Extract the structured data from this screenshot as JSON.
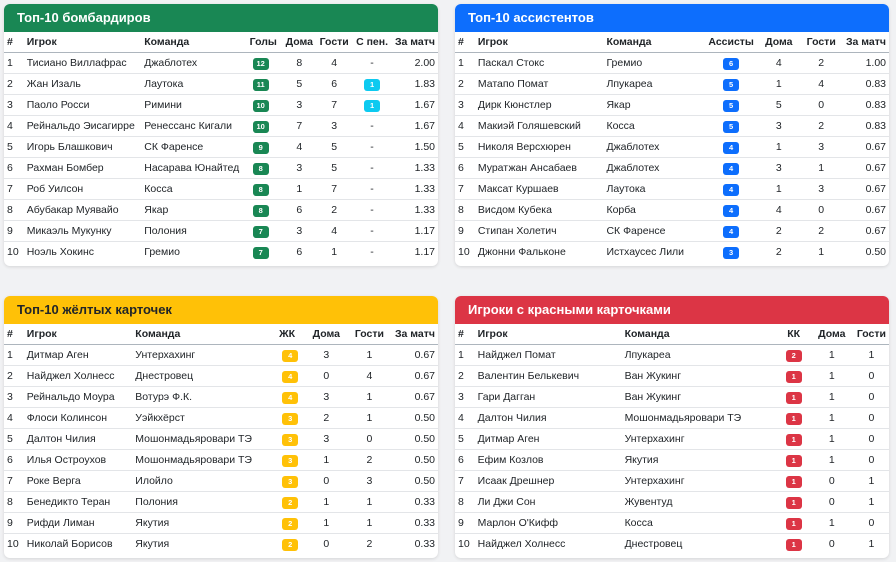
{
  "scorers": {
    "title": "Топ-10 бомбардиров",
    "headers": [
      "#",
      "Игрок",
      "Команда",
      "Голы",
      "Дома",
      "Гости",
      "С пен.",
      "За матч"
    ],
    "rows": [
      {
        "n": "1",
        "player": "Тисиано Виллафрас",
        "team": "Джаблотех",
        "goals": "12",
        "home": "8",
        "away": "4",
        "pen": "-",
        "per": "2.00"
      },
      {
        "n": "2",
        "player": "Жан Изаль",
        "team": "Лаутока",
        "goals": "11",
        "home": "5",
        "away": "6",
        "pen": "1",
        "per": "1.83"
      },
      {
        "n": "3",
        "player": "Паоло Росси",
        "team": "Римини",
        "goals": "10",
        "home": "3",
        "away": "7",
        "pen": "1",
        "per": "1.67"
      },
      {
        "n": "4",
        "player": "Рейнальдо Эисагирре",
        "team": "Ренессанс Кигали",
        "goals": "10",
        "home": "7",
        "away": "3",
        "pen": "-",
        "per": "1.67"
      },
      {
        "n": "5",
        "player": "Игорь Блашкович",
        "team": "СК Фаренсе",
        "goals": "9",
        "home": "4",
        "away": "5",
        "pen": "-",
        "per": "1.50"
      },
      {
        "n": "6",
        "player": "Рахман Бомбер",
        "team": "Насарава Юнайтед",
        "goals": "8",
        "home": "3",
        "away": "5",
        "pen": "-",
        "per": "1.33"
      },
      {
        "n": "7",
        "player": "Роб Уилсон",
        "team": "Косса",
        "goals": "8",
        "home": "1",
        "away": "7",
        "pen": "-",
        "per": "1.33"
      },
      {
        "n": "8",
        "player": "Абубакар Муявайо",
        "team": "Якар",
        "goals": "8",
        "home": "6",
        "away": "2",
        "pen": "-",
        "per": "1.33"
      },
      {
        "n": "9",
        "player": "Микаэль Мукунку",
        "team": "Полония",
        "goals": "7",
        "home": "3",
        "away": "4",
        "pen": "-",
        "per": "1.17"
      },
      {
        "n": "10",
        "player": "Ноэль Хокинс",
        "team": "Гремио",
        "goals": "7",
        "home": "6",
        "away": "1",
        "pen": "-",
        "per": "1.17"
      }
    ]
  },
  "assists": {
    "title": "Топ-10 ассистентов",
    "headers": [
      "#",
      "Игрок",
      "Команда",
      "Ассисты",
      "Дома",
      "Гости",
      "За матч"
    ],
    "rows": [
      {
        "n": "1",
        "player": "Паскал Стокс",
        "team": "Гремио",
        "val": "6",
        "home": "4",
        "away": "2",
        "per": "1.00"
      },
      {
        "n": "2",
        "player": "Матапо Помат",
        "team": "Лпукареа",
        "val": "5",
        "home": "1",
        "away": "4",
        "per": "0.83"
      },
      {
        "n": "3",
        "player": "Дирк Кюнстлер",
        "team": "Якар",
        "val": "5",
        "home": "5",
        "away": "0",
        "per": "0.83"
      },
      {
        "n": "4",
        "player": "Макиэй Голяшевский",
        "team": "Косса",
        "val": "5",
        "home": "3",
        "away": "2",
        "per": "0.83"
      },
      {
        "n": "5",
        "player": "Николя Версхюрен",
        "team": "Джаблотех",
        "val": "4",
        "home": "1",
        "away": "3",
        "per": "0.67"
      },
      {
        "n": "6",
        "player": "Муратжан Ансабаев",
        "team": "Джаблотех",
        "val": "4",
        "home": "3",
        "away": "1",
        "per": "0.67"
      },
      {
        "n": "7",
        "player": "Максат Куршаев",
        "team": "Лаутока",
        "val": "4",
        "home": "1",
        "away": "3",
        "per": "0.67"
      },
      {
        "n": "8",
        "player": "Висдом Кубека",
        "team": "Корба",
        "val": "4",
        "home": "4",
        "away": "0",
        "per": "0.67"
      },
      {
        "n": "9",
        "player": "Стипан Холетич",
        "team": "СК Фаренсе",
        "val": "4",
        "home": "2",
        "away": "2",
        "per": "0.67"
      },
      {
        "n": "10",
        "player": "Джонни Фальконе",
        "team": "Истхаусес Лили",
        "val": "3",
        "home": "2",
        "away": "1",
        "per": "0.50"
      }
    ]
  },
  "yellow": {
    "title": "Топ-10 жёлтых карточек",
    "headers": [
      "#",
      "Игрок",
      "Команда",
      "ЖК",
      "Дома",
      "Гости",
      "За матч"
    ],
    "rows": [
      {
        "n": "1",
        "player": "Дитмар Аген",
        "team": "Унтерхахинг",
        "val": "4",
        "home": "3",
        "away": "1",
        "per": "0.67"
      },
      {
        "n": "2",
        "player": "Найджел Холнесс",
        "team": "Днестровец",
        "val": "4",
        "home": "0",
        "away": "4",
        "per": "0.67"
      },
      {
        "n": "3",
        "player": "Рейнальдо Моура",
        "team": "Вотурэ Ф.К.",
        "val": "4",
        "home": "3",
        "away": "1",
        "per": "0.67"
      },
      {
        "n": "4",
        "player": "Флоси Колинсон",
        "team": "Уэйкхёрст",
        "val": "3",
        "home": "2",
        "away": "1",
        "per": "0.50"
      },
      {
        "n": "5",
        "player": "Далтон Чилия",
        "team": "Мошонмадьяровари ТЭ",
        "val": "3",
        "home": "3",
        "away": "0",
        "per": "0.50"
      },
      {
        "n": "6",
        "player": "Илья Остроухов",
        "team": "Мошонмадьяровари ТЭ",
        "val": "3",
        "home": "1",
        "away": "2",
        "per": "0.50"
      },
      {
        "n": "7",
        "player": "Роке Верга",
        "team": "Илойло",
        "val": "3",
        "home": "0",
        "away": "3",
        "per": "0.50"
      },
      {
        "n": "8",
        "player": "Бенедикто Теран",
        "team": "Полония",
        "val": "2",
        "home": "1",
        "away": "1",
        "per": "0.33"
      },
      {
        "n": "9",
        "player": "Рифди Лиман",
        "team": "Якутия",
        "val": "2",
        "home": "1",
        "away": "1",
        "per": "0.33"
      },
      {
        "n": "10",
        "player": "Николай Борисов",
        "team": "Якутия",
        "val": "2",
        "home": "0",
        "away": "2",
        "per": "0.33"
      }
    ]
  },
  "red": {
    "title": "Игроки с красными карточками",
    "headers": [
      "#",
      "Игрок",
      "Команда",
      "КК",
      "Дома",
      "Гости"
    ],
    "rows": [
      {
        "n": "1",
        "player": "Найджел Помат",
        "team": "Лпукареа",
        "val": "2",
        "home": "1",
        "away": "1"
      },
      {
        "n": "2",
        "player": "Валентин Белькевич",
        "team": "Ван Жукинг",
        "val": "1",
        "home": "1",
        "away": "0"
      },
      {
        "n": "3",
        "player": "Гари Дагган",
        "team": "Ван Жукинг",
        "val": "1",
        "home": "1",
        "away": "0"
      },
      {
        "n": "4",
        "player": "Далтон Чилия",
        "team": "Мошонмадьяровари ТЭ",
        "val": "1",
        "home": "1",
        "away": "0"
      },
      {
        "n": "5",
        "player": "Дитмар Аген",
        "team": "Унтерхахинг",
        "val": "1",
        "home": "1",
        "away": "0"
      },
      {
        "n": "6",
        "player": "Ефим Козлов",
        "team": "Якутия",
        "val": "1",
        "home": "1",
        "away": "0"
      },
      {
        "n": "7",
        "player": "Исаак Дрешнер",
        "team": "Унтерхахинг",
        "val": "1",
        "home": "0",
        "away": "1"
      },
      {
        "n": "8",
        "player": "Ли Джи Сон",
        "team": "Жувентуд",
        "val": "1",
        "home": "0",
        "away": "1"
      },
      {
        "n": "9",
        "player": "Марлон О'Кифф",
        "team": "Косса",
        "val": "1",
        "home": "1",
        "away": "0"
      },
      {
        "n": "10",
        "player": "Найджел Холнесс",
        "team": "Днестровец",
        "val": "1",
        "home": "0",
        "away": "1"
      }
    ]
  },
  "colors": {
    "green": "#198754",
    "blue": "#0d6efd",
    "yellow": "#ffc107",
    "red": "#dc3545",
    "cyan": "#0dcaf0"
  }
}
